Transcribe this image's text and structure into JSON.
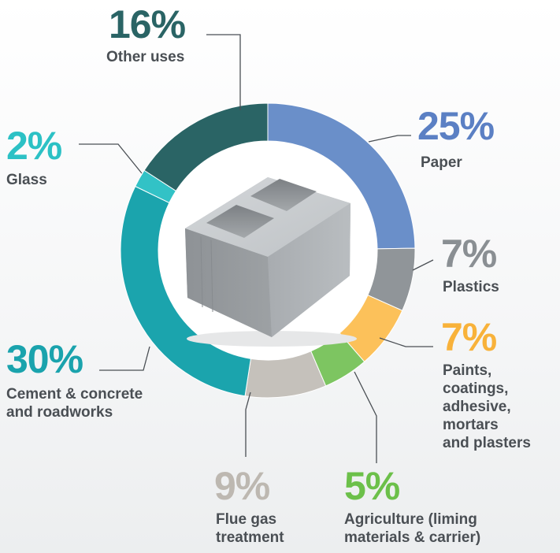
{
  "chart_data": {
    "type": "donut",
    "center_image": "concrete-block",
    "slices": [
      {
        "key": "paper",
        "percent": "25%",
        "value": 25,
        "label": "Paper",
        "color": "#6a8fc9"
      },
      {
        "key": "plastics",
        "percent": "7%",
        "value": 7,
        "label": "Plastics",
        "color": "#909599"
      },
      {
        "key": "paints",
        "percent": "7%",
        "value": 7,
        "label": "Paints,\ncoatings,\nadhesive,\nmortars\nand plasters",
        "color": "#fcc15a"
      },
      {
        "key": "agriculture",
        "percent": "5%",
        "value": 5,
        "label": "Agriculture (liming\nmaterials & carrier)",
        "color": "#7dc561"
      },
      {
        "key": "flue",
        "percent": "9%",
        "value": 9,
        "label": "Flue gas\ntreatment",
        "color": "#c5c1bb"
      },
      {
        "key": "cement",
        "percent": "30%",
        "value": 30,
        "label": "Cement & concrete\nand roadworks",
        "color": "#1ba4ad"
      },
      {
        "key": "glass",
        "percent": "2%",
        "value": 2,
        "label": "Glass",
        "color": "#32c2c6"
      },
      {
        "key": "other",
        "percent": "16%",
        "value": 16,
        "label": "Other uses",
        "color": "#2a6465"
      }
    ]
  },
  "text_colors": {
    "paper": "#5b80c4",
    "plastics": "#8a8f93",
    "paints": "#f8b23a",
    "agriculture": "#6cc04a",
    "flue": "#bdb8b1",
    "cement": "#1aa3ad",
    "glass": "#2cc1c5",
    "other": "#2a6465"
  }
}
